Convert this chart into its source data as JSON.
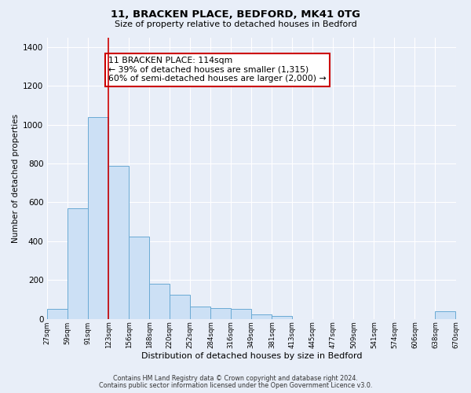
{
  "title1": "11, BRACKEN PLACE, BEDFORD, MK41 0TG",
  "title2": "Size of property relative to detached houses in Bedford",
  "xlabel": "Distribution of detached houses by size in Bedford",
  "ylabel": "Number of detached properties",
  "bar_values": [
    50,
    570,
    1040,
    790,
    425,
    180,
    125,
    65,
    55,
    50,
    25,
    15,
    0,
    0,
    0,
    0,
    0,
    0,
    0,
    40
  ],
  "tick_labels": [
    "27sqm",
    "59sqm",
    "91sqm",
    "123sqm",
    "156sqm",
    "188sqm",
    "220sqm",
    "252sqm",
    "284sqm",
    "316sqm",
    "349sqm",
    "381sqm",
    "413sqm",
    "445sqm",
    "477sqm",
    "509sqm",
    "541sqm",
    "574sqm",
    "606sqm",
    "638sqm",
    "670sqm"
  ],
  "bar_color": "#cce0f5",
  "bar_edge_color": "#6aaad4",
  "ylim": [
    0,
    1450
  ],
  "yticks": [
    0,
    200,
    400,
    600,
    800,
    1000,
    1200,
    1400
  ],
  "property_line_x": 3,
  "property_line_color": "#cc0000",
  "annotation_title": "11 BRACKEN PLACE: 114sqm",
  "annotation_line1": "← 39% of detached houses are smaller (1,315)",
  "annotation_line2": "60% of semi-detached houses are larger (2,000) →",
  "annotation_box_color": "#ffffff",
  "annotation_box_edge": "#cc0000",
  "footer1": "Contains HM Land Registry data © Crown copyright and database right 2024.",
  "footer2": "Contains public sector information licensed under the Open Government Licence v3.0.",
  "background_color": "#e8eef8",
  "plot_bg_color": "#e8eef8",
  "grid_color": "#ffffff"
}
